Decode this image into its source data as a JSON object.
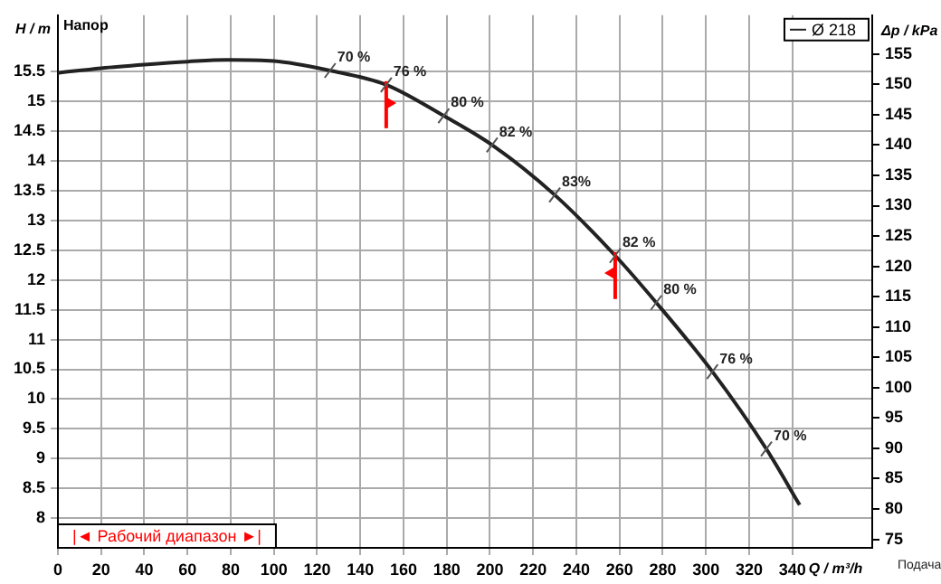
{
  "chart_data": {
    "type": "line",
    "title": "Напор",
    "xlabel": "Q / m³/h",
    "ylabel": "H / m",
    "y2label": "Δp / kPa",
    "x": [
      0,
      20,
      40,
      60,
      78,
      100,
      126,
      152,
      178.6,
      201,
      230,
      258,
      277,
      303,
      328,
      343.4
    ],
    "series": [
      {
        "name": "Ø 218",
        "color": "#222222",
        "values": [
          15.48,
          15.56,
          15.62,
          15.67,
          15.7,
          15.68,
          15.52,
          15.28,
          14.76,
          14.27,
          13.43,
          12.41,
          11.62,
          10.46,
          9.16,
          8.22
        ]
      }
    ],
    "xlim": [
      0,
      377
    ],
    "ylim": [
      7.5,
      16.45
    ],
    "y2lim": [
      73.6,
      161.4
    ],
    "xticks": [
      0,
      20,
      40,
      60,
      80,
      100,
      120,
      140,
      160,
      180,
      200,
      220,
      240,
      260,
      280,
      300,
      320,
      340
    ],
    "yticks": [
      8,
      8.5,
      9,
      9.5,
      10,
      10.5,
      11,
      11.5,
      12,
      12.5,
      13,
      13.5,
      14,
      14.5,
      15,
      15.5
    ],
    "y2ticks": [
      75,
      80,
      85,
      90,
      95,
      100,
      105,
      110,
      115,
      120,
      125,
      130,
      135,
      140,
      145,
      150,
      155
    ],
    "grid": true,
    "legend": "top right",
    "line_style": "solid",
    "ref_lines": [
      {
        "axis": "x",
        "value": 152,
        "color": "#ff0000"
      },
      {
        "axis": "x",
        "value": 258,
        "color": "#ff0000"
      }
    ],
    "annotations": [
      {
        "text": "70 %",
        "x": 126,
        "y": 15.52
      },
      {
        "text": "76 %",
        "x": 152,
        "y": 15.28
      },
      {
        "text": "80 %",
        "x": 178.6,
        "y": 14.76
      },
      {
        "text": "82 %",
        "x": 201,
        "y": 14.27
      },
      {
        "text": "83%",
        "x": 230,
        "y": 13.43
      },
      {
        "text": "82 %",
        "x": 258,
        "y": 12.41
      },
      {
        "text": "80 %",
        "x": 277,
        "y": 11.62
      },
      {
        "text": "76 %",
        "x": 303,
        "y": 10.46
      },
      {
        "text": "70 %",
        "x": 328,
        "y": 9.16
      },
      "|◄ Рабочий диапазон ►|",
      "Подача"
    ]
  }
}
